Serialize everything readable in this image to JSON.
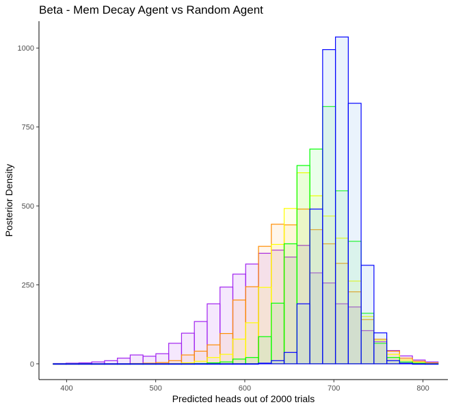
{
  "chart_data": {
    "type": "histogram",
    "title": "Beta - Mem Decay Agent vs Random Agent",
    "xlabel": "Predicted heads out of 2000 trials",
    "ylabel": "Posterior Density",
    "xlim": [
      369,
      828
    ],
    "ylim": [
      -50,
      1085
    ],
    "x_ticks": [
      400,
      500,
      600,
      700,
      800
    ],
    "y_ticks": [
      0,
      250,
      500,
      750,
      1000
    ],
    "bin_start": 385,
    "bin_width": 14.4,
    "grid": false,
    "legend": "none",
    "series": [
      {
        "color": "#a020f0",
        "fill": "rgba(160,32,240,0.10)",
        "values": [
          1,
          2,
          3,
          6,
          10,
          18,
          28,
          24,
          32,
          65,
          97,
          134,
          190,
          243,
          284,
          316,
          350,
          360,
          338,
          375,
          288,
          256,
          190,
          180,
          105,
          70,
          42,
          25,
          12,
          6
        ]
      },
      {
        "color": "#ff8c00",
        "fill": "rgba(255,140,0,0.08)",
        "values": [
          0,
          0,
          0,
          0,
          0,
          0,
          1,
          2,
          4,
          10,
          28,
          40,
          60,
          96,
          202,
          244,
          372,
          442,
          440,
          490,
          425,
          380,
          318,
          228,
          140,
          78,
          40,
          18,
          8,
          3
        ]
      },
      {
        "color": "#ffff00",
        "fill": "rgba(255,255,0,0.08)",
        "values": [
          0,
          0,
          0,
          0,
          0,
          0,
          0,
          0,
          0,
          1,
          3,
          8,
          20,
          30,
          78,
          130,
          242,
          378,
          492,
          605,
          532,
          468,
          398,
          262,
          150,
          75,
          30,
          12,
          4,
          1
        ]
      },
      {
        "color": "#00ff00",
        "fill": "rgba(0,255,0,0.08)",
        "values": [
          0,
          0,
          0,
          0,
          0,
          0,
          0,
          0,
          0,
          0,
          0,
          1,
          3,
          6,
          15,
          20,
          86,
          192,
          380,
          628,
          680,
          815,
          548,
          388,
          160,
          65,
          20,
          6,
          2,
          0
        ]
      },
      {
        "color": "#0000ff",
        "fill": "rgba(160,200,240,0.22)",
        "values": [
          0,
          0,
          0,
          0,
          0,
          0,
          0,
          0,
          0,
          0,
          0,
          0,
          0,
          0,
          0,
          0,
          2,
          10,
          36,
          190,
          490,
          995,
          1035,
          825,
          312,
          98,
          10,
          2,
          0,
          0
        ]
      }
    ]
  }
}
